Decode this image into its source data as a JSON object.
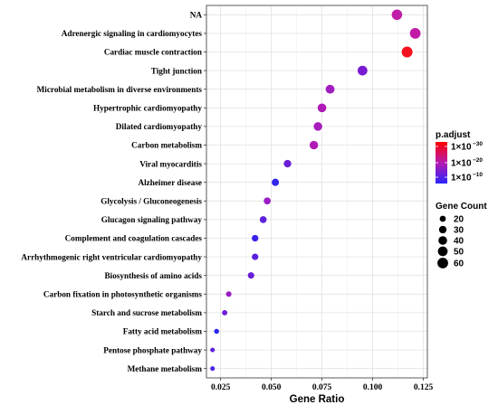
{
  "chart_data": {
    "type": "scatter",
    "xlabel": "Gene Ratio",
    "ylabel": "",
    "xlim": [
      0.018,
      0.127
    ],
    "xticks": [
      0.025,
      0.05,
      0.075,
      0.1,
      0.125
    ],
    "xtick_labels": [
      "0.025",
      "0.050",
      "0.075",
      "0.100",
      "0.125"
    ],
    "grid": true,
    "categories": [
      "NA",
      "Adrenergic signaling in cardiomyocytes",
      "Cardiac muscle contraction",
      "Tight junction",
      "Microbial metabolism in diverse environments",
      "Hypertrophic cardiomyopathy",
      "Dilated cardiomyopathy",
      "Carbon metabolism",
      "Viral myocarditis",
      "Alzheimer disease",
      "Glycolysis / Gluconeogenesis",
      "Glucagon signaling pathway",
      "Complement and coagulation cascades",
      "Arrhythmogenic right ventricular cardiomyopathy",
      "Biosynthesis of amino acids",
      "Carbon fixation in photosynthetic organisms",
      "Starch and sucrose metabolism",
      "Fatty acid metabolism",
      "Pentose phosphate pathway",
      "Methane metabolism"
    ],
    "points": [
      {
        "x": 0.112,
        "count": 58,
        "color": "#C020A8"
      },
      {
        "x": 0.121,
        "count": 60,
        "color": "#C21AA6"
      },
      {
        "x": 0.117,
        "count": 62,
        "color": "#F5111E"
      },
      {
        "x": 0.095,
        "count": 50,
        "color": "#7A1AD2"
      },
      {
        "x": 0.079,
        "count": 42,
        "color": "#A01DC0"
      },
      {
        "x": 0.075,
        "count": 40,
        "color": "#B01BB8"
      },
      {
        "x": 0.073,
        "count": 39,
        "color": "#A61CBC"
      },
      {
        "x": 0.071,
        "count": 38,
        "color": "#B01AB6"
      },
      {
        "x": 0.058,
        "count": 30,
        "color": "#6C1FD8"
      },
      {
        "x": 0.052,
        "count": 28,
        "color": "#3024EE"
      },
      {
        "x": 0.048,
        "count": 26,
        "color": "#9A1EC4"
      },
      {
        "x": 0.046,
        "count": 25,
        "color": "#5C20DE"
      },
      {
        "x": 0.042,
        "count": 23,
        "color": "#3A22EA"
      },
      {
        "x": 0.042,
        "count": 22,
        "color": "#5A20DE"
      },
      {
        "x": 0.04,
        "count": 22,
        "color": "#6A1FD8"
      },
      {
        "x": 0.029,
        "count": 16,
        "color": "#9A1DC4"
      },
      {
        "x": 0.027,
        "count": 15,
        "color": "#6E1ED6"
      },
      {
        "x": 0.023,
        "count": 13,
        "color": "#2E24F0"
      },
      {
        "x": 0.021,
        "count": 11,
        "color": "#5C20DE"
      },
      {
        "x": 0.021,
        "count": 11,
        "color": "#4C22E4"
      }
    ],
    "color_legend": {
      "title": "p.adjust",
      "labels": [
        {
          "base": "1×10",
          "exp": "−30"
        },
        {
          "base": "1×10",
          "exp": "−20"
        },
        {
          "base": "1×10",
          "exp": "−10"
        }
      ],
      "gradient": [
        "#FF0000",
        "#B51AAF",
        "#2A24FF"
      ]
    },
    "size_legend": {
      "title": "Gene Count",
      "values": [
        20,
        30,
        40,
        50,
        60
      ]
    }
  }
}
